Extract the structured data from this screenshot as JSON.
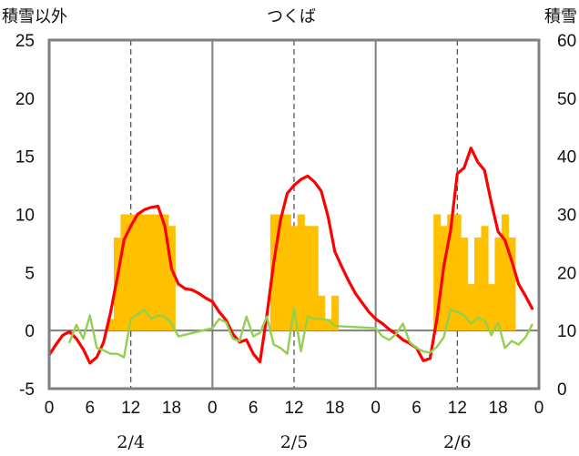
{
  "chart_data": {
    "type": "bar+line",
    "title": "つくば",
    "left_axis_label": "積雪以外",
    "right_axis_label": "積雪",
    "left_ylim": [
      -5,
      25
    ],
    "left_yticks": [
      -5,
      0,
      5,
      10,
      15,
      20,
      25
    ],
    "right_ylim": [
      0,
      60
    ],
    "right_yticks": [
      0,
      10,
      20,
      30,
      40,
      50,
      60
    ],
    "x_tick_labels": [
      "0",
      "6",
      "12",
      "18",
      "0",
      "6",
      "12",
      "18",
      "0",
      "6",
      "12",
      "18",
      "0"
    ],
    "day_labels": [
      "2/4",
      "2/5",
      "2/6"
    ],
    "hours_per_day": 24,
    "grid": "vertical dashed at 12h, solid day separators",
    "colors": {
      "bars": "#ffc000",
      "red_line": "#ff0000",
      "green_line": "#92d050",
      "purple_line": "#7030a0",
      "frame": "#7f7f7f"
    },
    "bars": {
      "axis": "left",
      "hours": [
        9,
        10,
        11,
        12,
        13,
        14,
        15,
        16,
        17,
        18,
        33,
        34,
        35,
        36,
        37,
        38,
        39,
        40,
        41,
        42,
        43,
        57,
        58,
        59,
        60,
        61,
        62,
        63,
        64,
        65,
        66,
        67,
        68,
        69
      ],
      "values": [
        1,
        8,
        10,
        10,
        10,
        10,
        10,
        10,
        10,
        9,
        10,
        10,
        10,
        9,
        10,
        9,
        9,
        3,
        1,
        3,
        0,
        10,
        9,
        10,
        10,
        8,
        4,
        8,
        9,
        4,
        8,
        10,
        8,
        0
      ]
    },
    "series": [
      {
        "axis": "left",
        "color_key": "red_line",
        "points": [
          [
            0,
            -2.1
          ],
          [
            1,
            -1.2
          ],
          [
            2,
            -0.4
          ],
          [
            3,
            -0.1
          ],
          [
            4,
            -0.7
          ],
          [
            5,
            -1.6
          ],
          [
            6,
            -2.8
          ],
          [
            7,
            -2.3
          ],
          [
            8,
            -1.0
          ],
          [
            9,
            1.5
          ],
          [
            10,
            4.5
          ],
          [
            11,
            7.8
          ],
          [
            12,
            9.0
          ],
          [
            13,
            10.0
          ],
          [
            14,
            10.4
          ],
          [
            15,
            10.6
          ],
          [
            16,
            10.7
          ],
          [
            17,
            9.0
          ],
          [
            18,
            5.3
          ],
          [
            19,
            4.0
          ],
          [
            20,
            3.6
          ],
          [
            21,
            3.5
          ],
          [
            22,
            3.2
          ],
          [
            23,
            2.8
          ],
          [
            24,
            2.5
          ],
          [
            25,
            1.6
          ],
          [
            26,
            0.9
          ],
          [
            27,
            -0.3
          ],
          [
            28,
            -1.0
          ],
          [
            29,
            -0.8
          ],
          [
            30,
            -2.0
          ],
          [
            31,
            -2.7
          ],
          [
            32,
            1.3
          ],
          [
            33,
            5.8
          ],
          [
            34,
            9.5
          ],
          [
            35,
            11.8
          ],
          [
            36,
            12.5
          ],
          [
            37,
            13.0
          ],
          [
            38,
            13.3
          ],
          [
            39,
            12.8
          ],
          [
            40,
            12.0
          ],
          [
            41,
            9.8
          ],
          [
            42,
            6.8
          ],
          [
            43,
            5.5
          ],
          [
            44,
            4.3
          ],
          [
            45,
            3.2
          ],
          [
            46,
            2.4
          ],
          [
            47,
            1.6
          ],
          [
            48,
            1.0
          ],
          [
            49,
            0.6
          ],
          [
            50,
            0.1
          ],
          [
            51,
            -0.3
          ],
          [
            52,
            -0.8
          ],
          [
            53,
            -1.1
          ],
          [
            54,
            -1.5
          ],
          [
            55,
            -2.6
          ],
          [
            56,
            -2.4
          ],
          [
            57,
            1.0
          ],
          [
            58,
            5.5
          ],
          [
            59,
            8.6
          ],
          [
            60,
            13.5
          ],
          [
            61,
            14.0
          ],
          [
            62,
            15.7
          ],
          [
            63,
            14.5
          ],
          [
            64,
            13.8
          ],
          [
            65,
            11.0
          ],
          [
            66,
            8.5
          ],
          [
            67,
            7.8
          ],
          [
            68,
            6.0
          ],
          [
            69,
            4.0
          ],
          [
            70,
            3.0
          ],
          [
            71,
            1.9
          ]
        ]
      },
      {
        "axis": "left",
        "color_key": "green_line",
        "points": [
          [
            3,
            -1.0
          ],
          [
            4,
            0.5
          ],
          [
            5,
            -0.7
          ],
          [
            6,
            1.3
          ],
          [
            7,
            -1.5
          ],
          [
            8,
            -1.7
          ],
          [
            9,
            -2.0
          ],
          [
            10,
            -2.0
          ],
          [
            11,
            -2.3
          ],
          [
            12,
            1.0
          ],
          [
            13,
            1.4
          ],
          [
            14,
            1.8
          ],
          [
            15,
            1.0
          ],
          [
            16,
            1.3
          ],
          [
            17,
            1.2
          ],
          [
            18,
            0.6
          ],
          [
            19,
            -0.5
          ],
          [
            24,
            0.2
          ],
          [
            25,
            1.0
          ],
          [
            26,
            0.7
          ],
          [
            27,
            -0.7
          ],
          [
            28,
            -0.9
          ],
          [
            29,
            1.2
          ],
          [
            30,
            -0.5
          ],
          [
            31,
            -0.2
          ],
          [
            32,
            1.2
          ],
          [
            33,
            -1.2
          ],
          [
            34,
            -1.5
          ],
          [
            35,
            -2.0
          ],
          [
            36,
            1.9
          ],
          [
            37,
            -1.8
          ],
          [
            38,
            1.2
          ],
          [
            39,
            1.0
          ],
          [
            40,
            1.0
          ],
          [
            41,
            0.9
          ],
          [
            42,
            0.4
          ],
          [
            48,
            0.2
          ],
          [
            49,
            -0.5
          ],
          [
            50,
            -0.8
          ],
          [
            51,
            -0.3
          ],
          [
            52,
            0.6
          ],
          [
            53,
            -1.0
          ],
          [
            54,
            -1.5
          ],
          [
            55,
            -1.8
          ],
          [
            56,
            -1.9
          ],
          [
            57,
            -1.4
          ],
          [
            58,
            -0.6
          ],
          [
            59,
            1.8
          ],
          [
            60,
            1.6
          ],
          [
            61,
            1.3
          ],
          [
            62,
            0.6
          ],
          [
            63,
            1.1
          ],
          [
            64,
            0.9
          ],
          [
            65,
            -0.4
          ],
          [
            66,
            0.7
          ],
          [
            67,
            -1.5
          ],
          [
            68,
            -0.9
          ],
          [
            69,
            -1.2
          ],
          [
            70,
            -0.6
          ],
          [
            71,
            0.5
          ]
        ]
      },
      {
        "axis": "left",
        "color_key": "purple_line",
        "points": [
          [
            0,
            -5
          ],
          [
            72,
            -5
          ]
        ]
      }
    ]
  }
}
